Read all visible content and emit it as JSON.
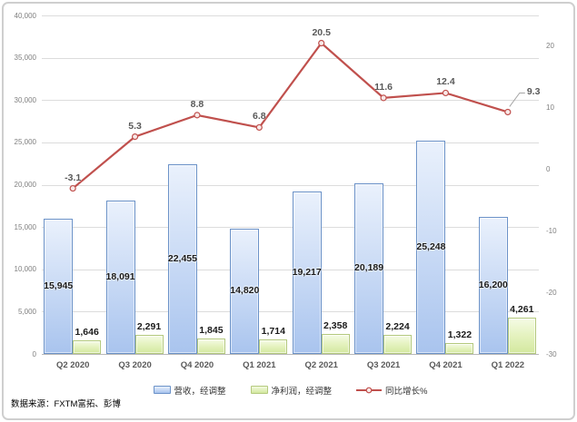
{
  "chart_data": {
    "type": "bar+line",
    "title": "",
    "categories": [
      "Q2 2020",
      "Q3 2020",
      "Q4 2020",
      "Q1 2021",
      "Q2 2021",
      "Q3 2021",
      "Q4 2021",
      "Q1 2022"
    ],
    "series": [
      {
        "name": "营收，经调整",
        "type": "bar",
        "axis": "left",
        "values": [
          15945,
          18091,
          22455,
          14820,
          19217,
          20189,
          25248,
          16200
        ],
        "labels": [
          "15,945",
          "18,091",
          "22,455",
          "14,820",
          "19,217",
          "20,189",
          "25,248",
          "16,200"
        ]
      },
      {
        "name": "净利润，经调整",
        "type": "bar",
        "axis": "left",
        "values": [
          1646,
          2291,
          1845,
          1714,
          2358,
          2224,
          1322,
          4261
        ],
        "labels": [
          "1,646",
          "2,291",
          "1,845",
          "1,714",
          "2,358",
          "2,224",
          "1,322",
          "4,261"
        ]
      },
      {
        "name": "同比增长%",
        "type": "line",
        "axis": "right",
        "values": [
          -3.1,
          5.3,
          8.8,
          6.8,
          20.5,
          11.6,
          12.4,
          9.3
        ],
        "labels": [
          "-3.1",
          "5.3",
          "8.8",
          "6.8",
          "20.5",
          "11.6",
          "12.4",
          "9.3"
        ],
        "last_label_leader": true
      }
    ],
    "left_axis": {
      "min": 0,
      "max": 40000,
      "step": 5000,
      "tick_labels": [
        "40,000",
        "35,000",
        "30,000",
        "25,000",
        "20,000",
        "15,000",
        "10,000",
        "5,000",
        "0"
      ]
    },
    "right_axis": {
      "min": -30,
      "max": 25,
      "ticks": [
        20,
        10,
        0,
        -10,
        -20,
        -30
      ],
      "tick_labels": [
        "20",
        "10",
        "0",
        "-10",
        "-20",
        "-30"
      ]
    },
    "grid": true,
    "legend_position": "bottom",
    "source": "数据来源：FXTM富拓、彭博"
  },
  "colors": {
    "revenue_border": "#6b92c8",
    "revenue_fill": "#a9c4ee",
    "profit_border": "#b4c97e",
    "profit_fill": "#d3e89f",
    "line": "#c0504d",
    "marker_fill": "#f8e9e8",
    "grid": "#dcdcdc",
    "axis_text": "#808080",
    "data_label_text": "#1a1a1a",
    "line_label_text": "#595959",
    "leader": "#a6a6a6"
  }
}
